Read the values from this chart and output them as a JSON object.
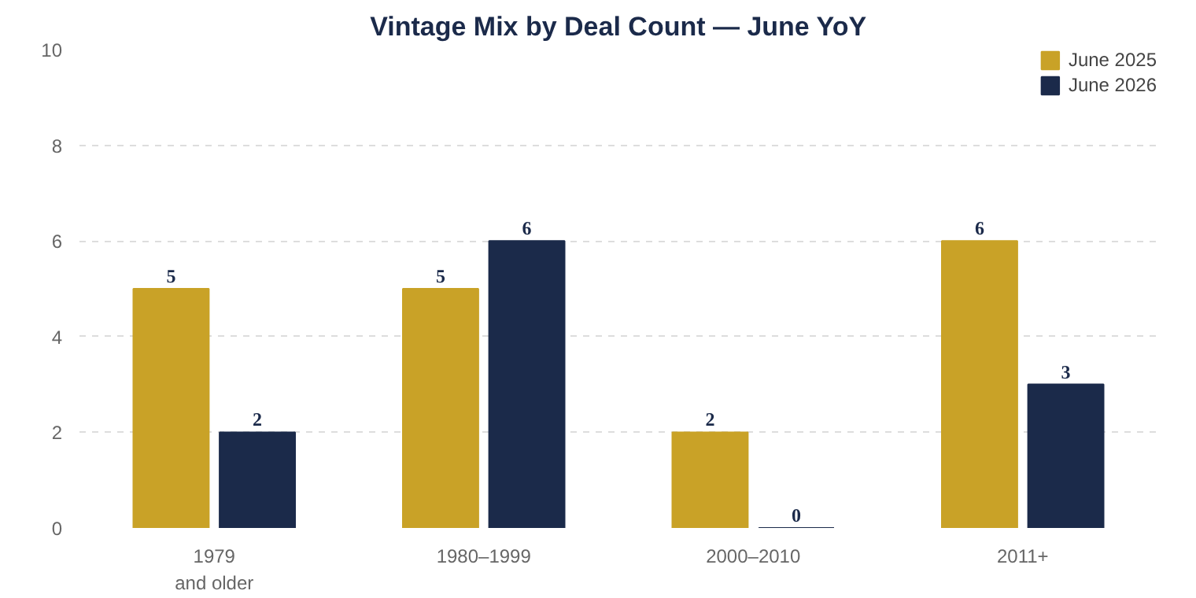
{
  "chart_data": {
    "type": "bar",
    "title": "Vintage Mix by Deal Count — June YoY",
    "categories": [
      "1979\nand older",
      "1980–1999",
      "2000–2010",
      "2011+"
    ],
    "series": [
      {
        "name": "June 2025",
        "color": "#c9a227",
        "values": [
          5,
          5,
          2,
          6
        ]
      },
      {
        "name": "June 2026",
        "color": "#1b2a4a",
        "values": [
          2,
          6,
          0,
          3
        ]
      }
    ],
    "ylim": [
      0,
      10
    ],
    "yticks": [
      0,
      2,
      4,
      6,
      8,
      10
    ],
    "grid": "y",
    "legend": "top right",
    "data_labels": true
  }
}
